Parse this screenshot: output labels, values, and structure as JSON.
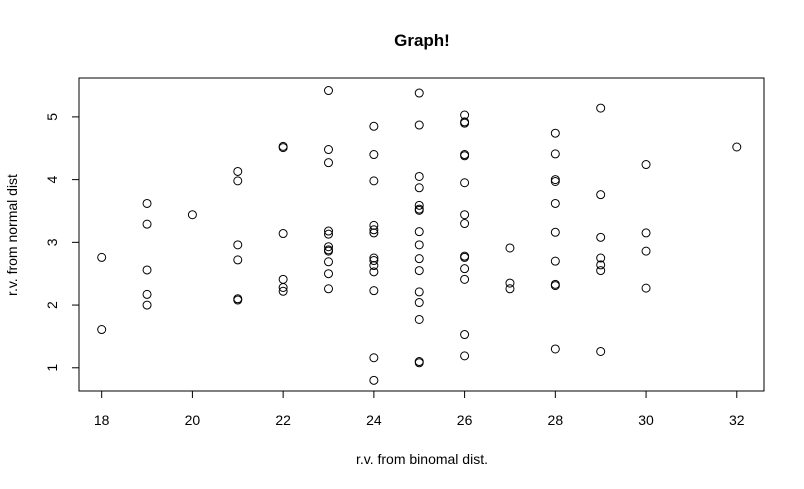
{
  "chart_data": {
    "type": "scatter",
    "title": "Graph!",
    "xlabel": "r.v. from binomal dist.",
    "ylabel": "r.v. from normal dist",
    "xlim": [
      17.5,
      32.6
    ],
    "ylim": [
      0.63,
      5.62
    ],
    "x_ticks": [
      "18",
      "20",
      "22",
      "24",
      "26",
      "28",
      "30",
      "32"
    ],
    "y_ticks": [
      "1",
      "2",
      "3",
      "4",
      "5"
    ],
    "grid": false,
    "legend": "none",
    "marker_color": "#000000",
    "points": [
      {
        "x": 18,
        "y": 2.76
      },
      {
        "x": 18,
        "y": 1.61
      },
      {
        "x": 19,
        "y": 3.62
      },
      {
        "x": 19,
        "y": 3.29
      },
      {
        "x": 19,
        "y": 2.56
      },
      {
        "x": 19,
        "y": 2.17
      },
      {
        "x": 19,
        "y": 2.0
      },
      {
        "x": 20,
        "y": 3.44
      },
      {
        "x": 21,
        "y": 4.13
      },
      {
        "x": 21,
        "y": 3.98
      },
      {
        "x": 21,
        "y": 2.96
      },
      {
        "x": 21,
        "y": 2.72
      },
      {
        "x": 21,
        "y": 2.1
      },
      {
        "x": 21,
        "y": 2.08
      },
      {
        "x": 22,
        "y": 4.53
      },
      {
        "x": 22,
        "y": 4.51
      },
      {
        "x": 22,
        "y": 3.14
      },
      {
        "x": 22,
        "y": 2.41
      },
      {
        "x": 22,
        "y": 2.28
      },
      {
        "x": 22,
        "y": 2.22
      },
      {
        "x": 23,
        "y": 5.42
      },
      {
        "x": 23,
        "y": 4.48
      },
      {
        "x": 23,
        "y": 4.27
      },
      {
        "x": 23,
        "y": 3.18
      },
      {
        "x": 23,
        "y": 3.13
      },
      {
        "x": 23,
        "y": 2.93
      },
      {
        "x": 23,
        "y": 2.88
      },
      {
        "x": 23,
        "y": 2.86
      },
      {
        "x": 23,
        "y": 2.69
      },
      {
        "x": 23,
        "y": 2.5
      },
      {
        "x": 23,
        "y": 2.26
      },
      {
        "x": 24,
        "y": 4.85
      },
      {
        "x": 24,
        "y": 4.4
      },
      {
        "x": 24,
        "y": 3.98
      },
      {
        "x": 24,
        "y": 3.27
      },
      {
        "x": 24,
        "y": 3.2
      },
      {
        "x": 24,
        "y": 3.15
      },
      {
        "x": 24,
        "y": 2.75
      },
      {
        "x": 24,
        "y": 2.71
      },
      {
        "x": 24,
        "y": 2.63
      },
      {
        "x": 24,
        "y": 2.53
      },
      {
        "x": 24,
        "y": 2.23
      },
      {
        "x": 24,
        "y": 1.16
      },
      {
        "x": 24,
        "y": 0.8
      },
      {
        "x": 25,
        "y": 5.38
      },
      {
        "x": 25,
        "y": 4.87
      },
      {
        "x": 25,
        "y": 4.05
      },
      {
        "x": 25,
        "y": 3.87
      },
      {
        "x": 25,
        "y": 3.59
      },
      {
        "x": 25,
        "y": 3.53
      },
      {
        "x": 25,
        "y": 3.51
      },
      {
        "x": 25,
        "y": 3.17
      },
      {
        "x": 25,
        "y": 2.96
      },
      {
        "x": 25,
        "y": 2.74
      },
      {
        "x": 25,
        "y": 2.55
      },
      {
        "x": 25,
        "y": 2.21
      },
      {
        "x": 25,
        "y": 2.04
      },
      {
        "x": 25,
        "y": 1.77
      },
      {
        "x": 25,
        "y": 1.1
      },
      {
        "x": 25,
        "y": 1.08
      },
      {
        "x": 26,
        "y": 5.03
      },
      {
        "x": 26,
        "y": 4.92
      },
      {
        "x": 26,
        "y": 4.9
      },
      {
        "x": 26,
        "y": 4.4
      },
      {
        "x": 26,
        "y": 4.38
      },
      {
        "x": 26,
        "y": 3.95
      },
      {
        "x": 26,
        "y": 3.44
      },
      {
        "x": 26,
        "y": 3.3
      },
      {
        "x": 26,
        "y": 2.78
      },
      {
        "x": 26,
        "y": 2.76
      },
      {
        "x": 26,
        "y": 2.58
      },
      {
        "x": 26,
        "y": 2.41
      },
      {
        "x": 26,
        "y": 1.53
      },
      {
        "x": 26,
        "y": 1.19
      },
      {
        "x": 27,
        "y": 2.91
      },
      {
        "x": 27,
        "y": 2.35
      },
      {
        "x": 27,
        "y": 2.26
      },
      {
        "x": 28,
        "y": 4.74
      },
      {
        "x": 28,
        "y": 4.41
      },
      {
        "x": 28,
        "y": 4.0
      },
      {
        "x": 28,
        "y": 3.97
      },
      {
        "x": 28,
        "y": 3.62
      },
      {
        "x": 28,
        "y": 3.16
      },
      {
        "x": 28,
        "y": 2.7
      },
      {
        "x": 28,
        "y": 2.33
      },
      {
        "x": 28,
        "y": 2.31
      },
      {
        "x": 28,
        "y": 1.3
      },
      {
        "x": 29,
        "y": 5.14
      },
      {
        "x": 29,
        "y": 3.76
      },
      {
        "x": 29,
        "y": 3.08
      },
      {
        "x": 29,
        "y": 2.75
      },
      {
        "x": 29,
        "y": 2.64
      },
      {
        "x": 29,
        "y": 2.55
      },
      {
        "x": 29,
        "y": 1.26
      },
      {
        "x": 30,
        "y": 4.24
      },
      {
        "x": 30,
        "y": 3.15
      },
      {
        "x": 30,
        "y": 2.86
      },
      {
        "x": 30,
        "y": 2.27
      },
      {
        "x": 32,
        "y": 4.52
      }
    ]
  }
}
